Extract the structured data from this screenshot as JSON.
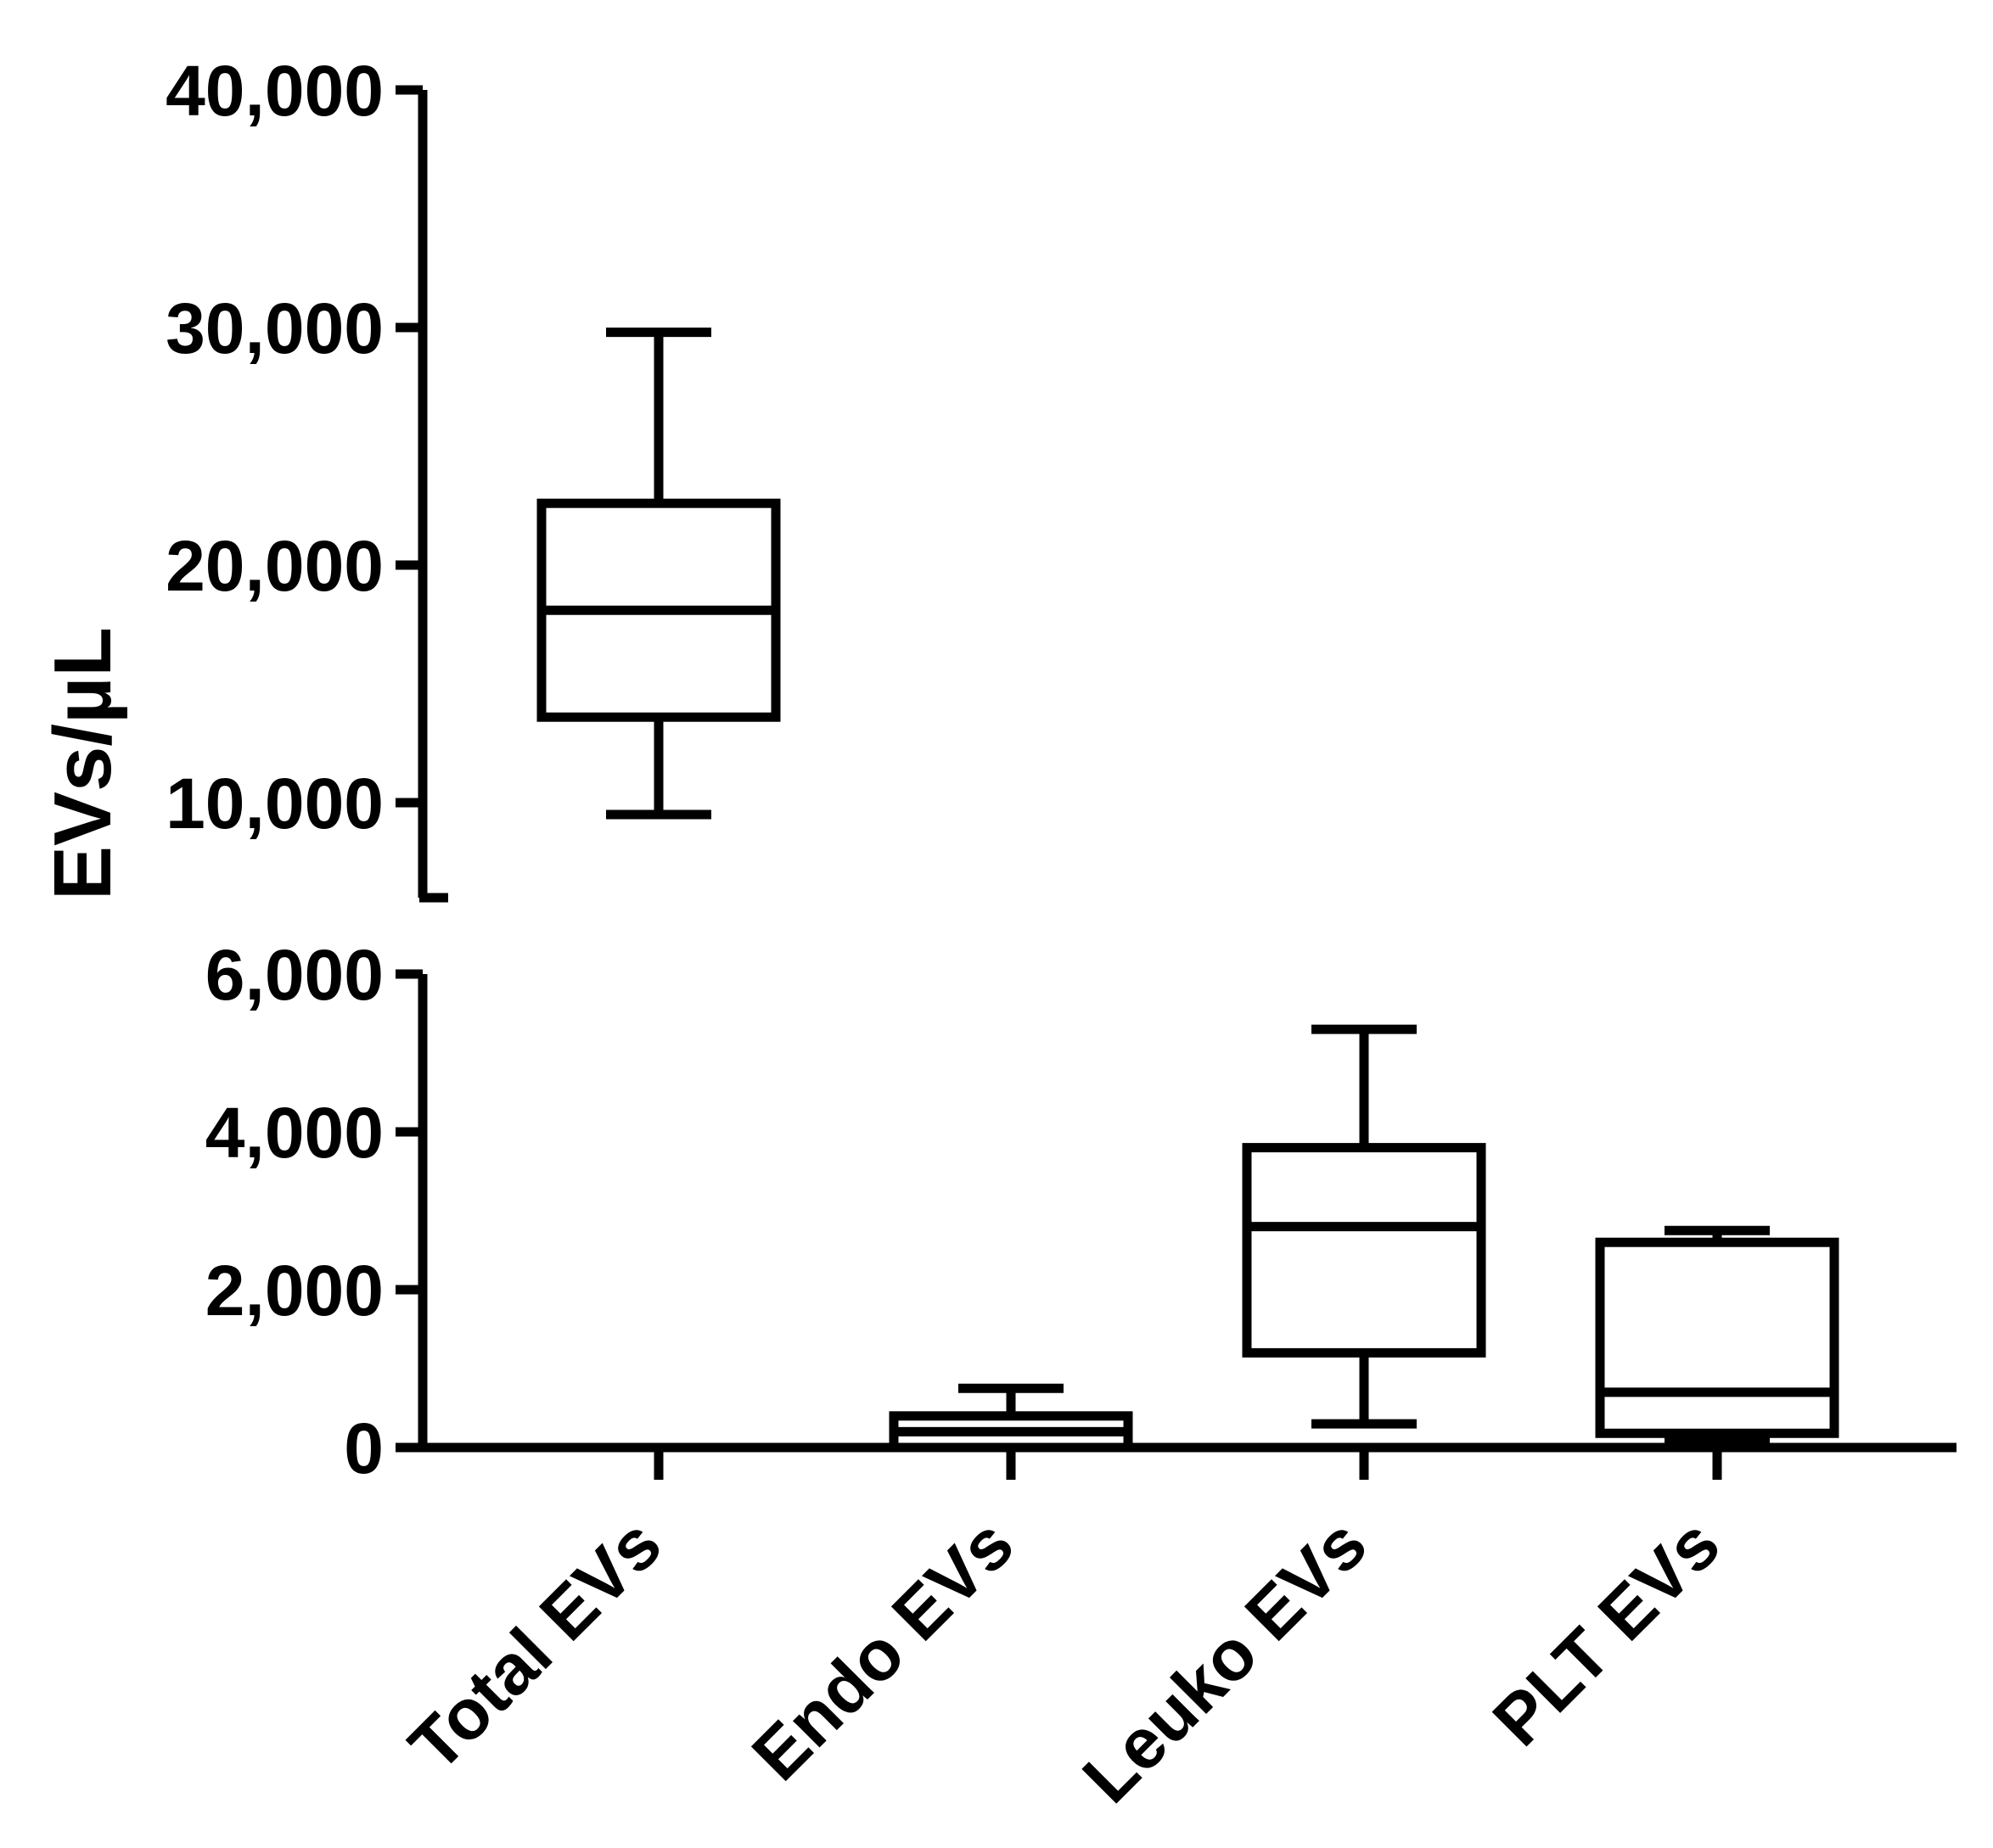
{
  "chart_data": {
    "type": "box",
    "title": "",
    "xlabel": "",
    "ylabel": "EVs/µL",
    "y_axis_break": true,
    "segments": [
      {
        "range": [
          0,
          6000
        ],
        "ticks": [
          0,
          2000,
          4000,
          6000
        ],
        "tick_labels": [
          "0",
          "2,000",
          "4,000",
          "6,000"
        ]
      },
      {
        "range": [
          6000,
          40000
        ],
        "ticks": [
          10000,
          20000,
          30000,
          40000
        ],
        "tick_labels": [
          "10,000",
          "20,000",
          "30,000",
          "40,000"
        ]
      }
    ],
    "categories": [
      "Total EVs",
      "Endo EVs",
      "Leuko EVs",
      "PLT EVs"
    ],
    "boxes": [
      {
        "category": "Total EVs",
        "min": 9500,
        "q1": 13600,
        "median": 18100,
        "q3": 22600,
        "max": 29800
      },
      {
        "category": "Endo EVs",
        "min": 0,
        "q1": 0,
        "median": 200,
        "q3": 400,
        "max": 750
      },
      {
        "category": "Leuko EVs",
        "min": 300,
        "q1": 1200,
        "median": 2800,
        "q3": 3800,
        "max": 5300
      },
      {
        "category": "PLT EVs",
        "min": 100,
        "q1": 180,
        "median": 700,
        "q3": 2600,
        "max": 2750
      }
    ],
    "grid": false,
    "legend": "none",
    "colors": {
      "stroke": "#000000",
      "fill": "#ffffff"
    }
  }
}
